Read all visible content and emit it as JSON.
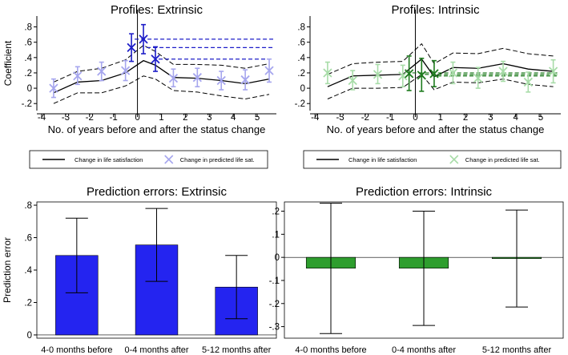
{
  "colors": {
    "extrinsic_bar": "#2424f0",
    "extrinsic_marker_light": "#a6a6ee",
    "extrinsic_marker_dark": "#1e1ec8",
    "intrinsic_bar": "#2e9e2e",
    "intrinsic_marker_light": "#a8dca8",
    "intrinsic_marker_dark": "#1d7a1d",
    "axis": "#000000",
    "legend_border": "#000000"
  },
  "chart_data": [
    {
      "id": "profiles_extrinsic",
      "type": "line",
      "title": "Profiles: Extrinsic",
      "xlabel": "No. of years before and after the status change",
      "ylabel": "Coefficient",
      "xlim": [
        -4.2,
        5.8
      ],
      "ylim": [
        -0.25,
        0.9
      ],
      "xticks": [
        "-4",
        "-3",
        "-2",
        "-1",
        "0",
        "1",
        "2",
        "3",
        "4",
        "5"
      ],
      "yticks": [
        "-.2",
        "0",
        ".2",
        ".4",
        ".6",
        ".8"
      ],
      "series": [
        {
          "name": "Change in life satisfaction",
          "style": "line",
          "x": [
            -3.5,
            -2.5,
            -1.5,
            -0.5,
            0.25,
            0.75,
            1.5,
            2.5,
            3.5,
            4.5,
            5.5
          ],
          "y": [
            -0.06,
            0.08,
            0.1,
            0.2,
            0.36,
            0.3,
            0.14,
            0.13,
            0.1,
            0.06,
            0.12
          ],
          "ci_lower": [
            -0.2,
            -0.06,
            -0.06,
            0.03,
            0.16,
            0.12,
            -0.03,
            -0.05,
            -0.1,
            -0.14,
            -0.08
          ],
          "ci_upper": [
            0.08,
            0.22,
            0.26,
            0.37,
            0.56,
            0.48,
            0.31,
            0.31,
            0.3,
            0.26,
            0.32
          ]
        },
        {
          "name": "Change in predicted life sat.",
          "style": "marker",
          "x": [
            -3.5,
            -2.5,
            -1.5,
            -0.5,
            -0.25,
            0.25,
            0.75,
            1.5,
            2.5,
            3.5,
            4.5,
            5.5
          ],
          "y": [
            0.0,
            0.16,
            0.22,
            0.23,
            0.53,
            0.64,
            0.38,
            0.13,
            0.14,
            0.1,
            0.11,
            0.23
          ],
          "ci_lower": [
            -0.12,
            0.05,
            0.1,
            0.1,
            0.35,
            0.45,
            0.22,
            0.02,
            0.02,
            -0.02,
            -0.02,
            0.08
          ],
          "ci_upper": [
            0.12,
            0.28,
            0.34,
            0.36,
            0.71,
            0.83,
            0.54,
            0.25,
            0.26,
            0.22,
            0.24,
            0.38
          ],
          "highlighted": [
            false,
            false,
            false,
            false,
            true,
            true,
            true,
            false,
            false,
            false,
            false,
            false
          ]
        }
      ],
      "reference_lines": [
        0.64,
        0.53,
        0.38
      ],
      "vline_x": 0
    },
    {
      "id": "profiles_intrinsic",
      "type": "line",
      "title": "Profiles: Intrinsic",
      "xlabel": "No. of years before and after the status change",
      "ylabel": "",
      "xlim": [
        -4.2,
        5.8
      ],
      "ylim": [
        -0.25,
        0.9
      ],
      "xticks": [
        "-4",
        "-3",
        "-2",
        "-1",
        "0",
        "1",
        "2",
        "3",
        "4",
        "5"
      ],
      "yticks": [
        "-.2",
        "0",
        ".2",
        ".4",
        ".6",
        ".8"
      ],
      "series": [
        {
          "name": "Change in life satisfaction",
          "style": "line",
          "x": [
            -3.5,
            -2.5,
            -1.5,
            -0.5,
            0.25,
            0.75,
            1.5,
            2.5,
            3.5,
            4.5,
            5.5
          ],
          "y": [
            0.02,
            0.16,
            0.17,
            0.18,
            0.38,
            0.15,
            0.27,
            0.26,
            0.32,
            0.25,
            0.22
          ],
          "ci_lower": [
            -0.14,
            0.0,
            0.0,
            0.01,
            0.18,
            -0.02,
            0.08,
            0.07,
            0.12,
            0.05,
            0.02
          ],
          "ci_upper": [
            0.18,
            0.32,
            0.34,
            0.35,
            0.58,
            0.32,
            0.46,
            0.45,
            0.52,
            0.45,
            0.42
          ]
        },
        {
          "name": "Change in predicted life sat.",
          "style": "marker",
          "x": [
            -3.5,
            -2.5,
            -1.5,
            -0.5,
            -0.25,
            0.25,
            0.75,
            1.5,
            2.5,
            3.5,
            4.5,
            5.5
          ],
          "y": [
            0.2,
            0.1,
            0.18,
            0.16,
            0.19,
            0.17,
            0.19,
            0.2,
            0.13,
            0.22,
            0.08,
            0.22
          ],
          "ci_lower": [
            0.06,
            -0.02,
            0.06,
            0.02,
            -0.03,
            -0.04,
            0.02,
            0.06,
            0.0,
            0.09,
            -0.05,
            0.07
          ],
          "ci_upper": [
            0.34,
            0.23,
            0.31,
            0.3,
            0.42,
            0.39,
            0.36,
            0.34,
            0.27,
            0.35,
            0.21,
            0.37
          ],
          "highlighted": [
            false,
            false,
            false,
            false,
            true,
            true,
            true,
            false,
            false,
            false,
            false,
            false
          ]
        }
      ],
      "reference_lines": [
        0.2,
        0.18,
        0.16
      ],
      "vline_x": 0
    },
    {
      "id": "errors_extrinsic",
      "type": "bar",
      "title": "Prediction errors: Extrinsic",
      "xlabel": "",
      "ylabel": "Prediction error",
      "categories": [
        "4-0 months before",
        "0-4 months after",
        "5-12 months after"
      ],
      "values": [
        0.49,
        0.555,
        0.295
      ],
      "ci_lower": [
        0.26,
        0.33,
        0.1
      ],
      "ci_upper": [
        0.72,
        0.78,
        0.49
      ],
      "ylim": [
        -0.02,
        0.82
      ],
      "yticks": [
        "0",
        ".2",
        ".4",
        ".6",
        ".8"
      ]
    },
    {
      "id": "errors_intrinsic",
      "type": "bar",
      "title": "Prediction errors: Intrinsic",
      "xlabel": "",
      "ylabel": "",
      "categories": [
        "4-0 months before",
        "0-4 months after",
        "5-12 months after"
      ],
      "values": [
        -0.047,
        -0.047,
        -0.003
      ],
      "ci_lower": [
        -0.33,
        -0.295,
        -0.215
      ],
      "ci_upper": [
        0.235,
        0.2,
        0.205
      ],
      "ylim": [
        -0.35,
        0.24
      ],
      "yticks": [
        "-.3",
        "-.2",
        "-.1",
        "0",
        ".1",
        ".2"
      ]
    }
  ],
  "legends": [
    {
      "id": "legend_extrinsic",
      "items": [
        {
          "label": "Change in life satisfaction",
          "symbol": "line"
        },
        {
          "label": "Change in predicted life sat.",
          "symbol": "cross"
        }
      ]
    },
    {
      "id": "legend_intrinsic",
      "items": [
        {
          "label": "Change in life satisfaction",
          "symbol": "line"
        },
        {
          "label": "Change in predicted life sat.",
          "symbol": "cross"
        }
      ]
    }
  ]
}
